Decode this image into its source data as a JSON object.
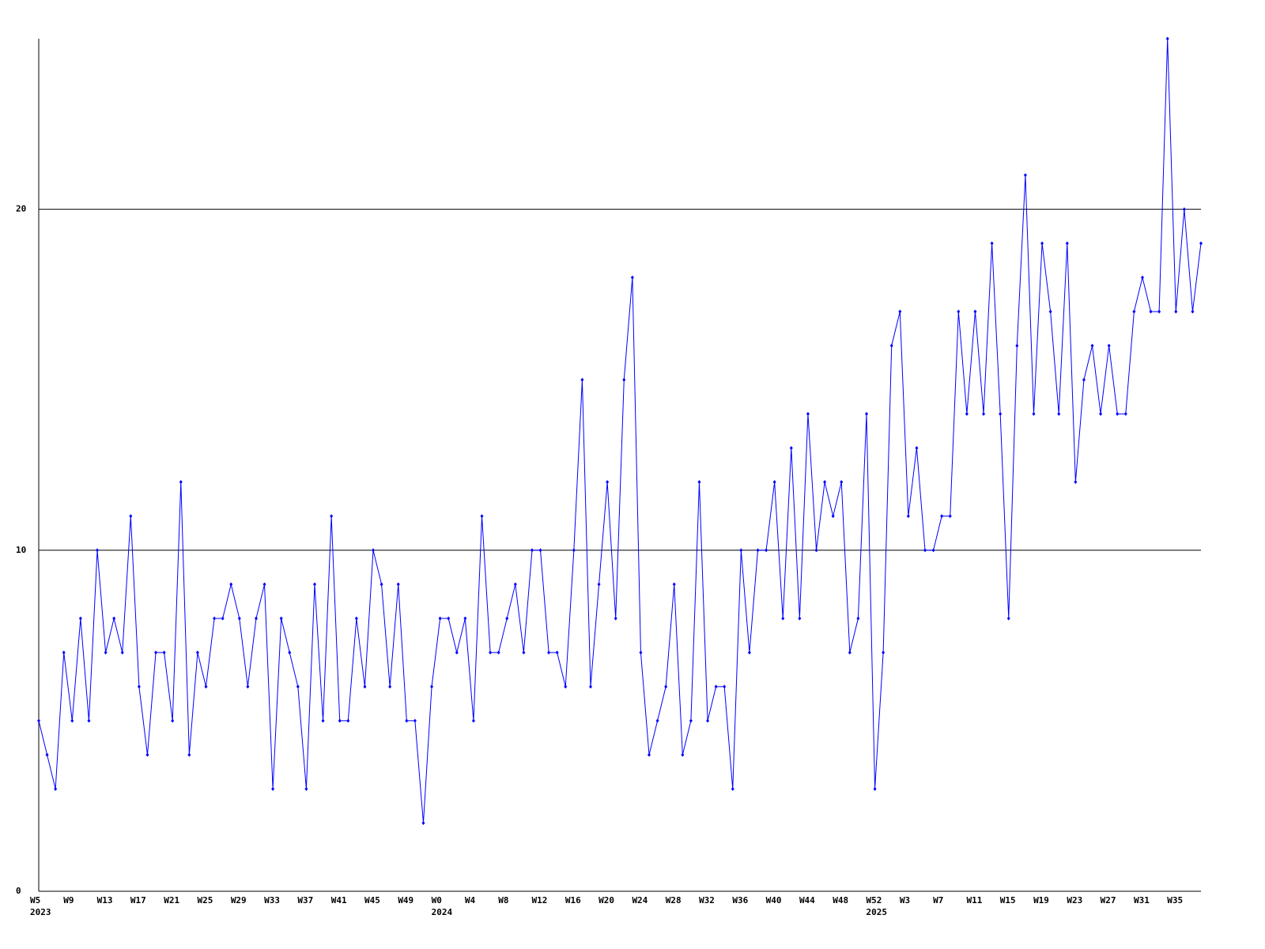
{
  "chart_data": {
    "type": "line",
    "categories": [
      "W5",
      null,
      null,
      null,
      "W9",
      null,
      null,
      null,
      "W13",
      null,
      null,
      null,
      "W17",
      null,
      null,
      null,
      "W21",
      null,
      null,
      null,
      "W25",
      null,
      null,
      null,
      "W29",
      null,
      null,
      null,
      "W33",
      null,
      null,
      null,
      "W37",
      null,
      null,
      null,
      "W41",
      null,
      null,
      null,
      "W45",
      null,
      null,
      null,
      "W49",
      null,
      null,
      null,
      "W0",
      null,
      null,
      null,
      "W4",
      null,
      null,
      null,
      "W8",
      null,
      null,
      null,
      "W12",
      null,
      null,
      null,
      "W16",
      null,
      null,
      null,
      "W20",
      null,
      null,
      null,
      "W24",
      null,
      null,
      null,
      "W28",
      null,
      null,
      null,
      "W32",
      null,
      null,
      null,
      "W36",
      null,
      null,
      null,
      "W40",
      null,
      null,
      null,
      "W44",
      null,
      null,
      null,
      "W48",
      null,
      null,
      null,
      "W52",
      null,
      null,
      null,
      "W3",
      null,
      null,
      null,
      "W7",
      null,
      null,
      null,
      "W11",
      null,
      null,
      null,
      "W15",
      null,
      null,
      null,
      "W19",
      null,
      null,
      null,
      "W23",
      null,
      null,
      null,
      "W27",
      null,
      null,
      null,
      "W31",
      null,
      null,
      null,
      "W35",
      null,
      null,
      null
    ],
    "category_years": [
      "2023",
      null,
      null,
      null,
      null,
      null,
      null,
      null,
      null,
      null,
      null,
      null,
      null,
      null,
      null,
      null,
      null,
      null,
      null,
      null,
      null,
      null,
      null,
      null,
      null,
      null,
      null,
      null,
      null,
      null,
      null,
      null,
      null,
      null,
      null,
      null,
      null,
      null,
      null,
      null,
      null,
      null,
      null,
      null,
      null,
      null,
      null,
      null,
      "2024",
      null,
      null,
      null,
      null,
      null,
      null,
      null,
      null,
      null,
      null,
      null,
      null,
      null,
      null,
      null,
      null,
      null,
      null,
      null,
      null,
      null,
      null,
      null,
      null,
      null,
      null,
      null,
      null,
      null,
      null,
      null,
      null,
      null,
      null,
      null,
      null,
      null,
      null,
      null,
      null,
      null,
      null,
      null,
      null,
      null,
      null,
      null,
      null,
      null,
      null,
      null,
      "2025",
      null,
      null,
      null,
      null,
      null,
      null,
      null,
      null,
      null,
      null,
      null,
      null,
      null,
      null,
      null,
      null,
      null,
      null,
      null,
      null,
      null,
      null,
      null,
      null,
      null,
      null,
      null,
      null,
      null,
      null,
      null,
      null,
      null,
      null,
      null,
      null,
      null,
      null,
      null
    ],
    "series": [
      {
        "color": "#0000ff",
        "values": [
          5,
          4,
          3,
          7,
          5,
          8,
          5,
          10,
          7,
          8,
          7,
          11,
          6,
          4,
          7,
          7,
          5,
          12,
          4,
          7,
          6,
          8,
          8,
          9,
          8,
          6,
          8,
          9,
          3,
          8,
          7,
          6,
          3,
          9,
          5,
          11,
          5,
          5,
          8,
          6,
          10,
          9,
          6,
          9,
          5,
          5,
          2,
          6,
          8,
          8,
          7,
          8,
          5,
          11,
          7,
          7,
          8,
          9,
          7,
          10,
          10,
          7,
          7,
          6,
          10,
          15,
          6,
          9,
          12,
          8,
          15,
          18,
          7,
          4,
          5,
          6,
          9,
          4,
          5,
          12,
          5,
          6,
          6,
          3,
          10,
          7,
          10,
          10,
          12,
          8,
          13,
          8,
          14,
          10,
          12,
          11,
          12,
          7,
          8,
          14,
          3,
          7,
          16,
          17,
          11,
          13,
          10,
          10,
          11,
          11,
          17,
          14,
          17,
          14,
          19,
          14,
          8,
          16,
          21,
          14,
          19,
          17,
          14,
          19,
          12,
          15,
          16,
          14,
          16,
          14,
          14,
          17,
          18,
          17,
          17,
          25,
          17,
          20,
          17,
          19
        ]
      }
    ],
    "ylim": [
      0,
      25
    ],
    "yticks": [
      0,
      10,
      20
    ],
    "grid": true
  }
}
